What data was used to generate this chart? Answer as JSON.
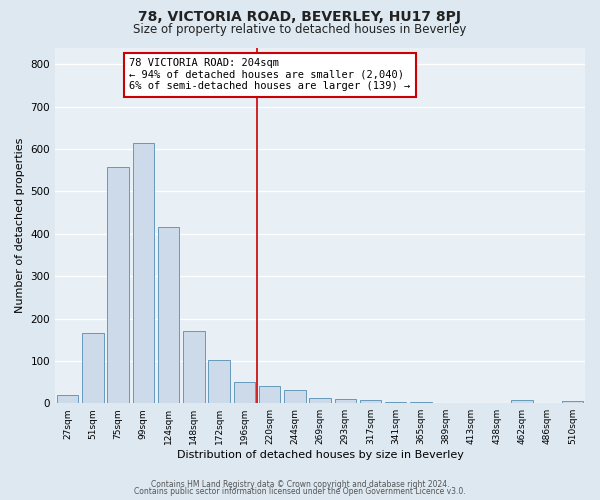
{
  "title": "78, VICTORIA ROAD, BEVERLEY, HU17 8PJ",
  "subtitle": "Size of property relative to detached houses in Beverley",
  "xlabel": "Distribution of detached houses by size in Beverley",
  "ylabel": "Number of detached properties",
  "bar_labels": [
    "27sqm",
    "51sqm",
    "75sqm",
    "99sqm",
    "124sqm",
    "148sqm",
    "172sqm",
    "196sqm",
    "220sqm",
    "244sqm",
    "269sqm",
    "293sqm",
    "317sqm",
    "341sqm",
    "365sqm",
    "389sqm",
    "413sqm",
    "438sqm",
    "462sqm",
    "486sqm",
    "510sqm"
  ],
  "bar_heights": [
    20,
    165,
    558,
    615,
    415,
    170,
    103,
    50,
    40,
    32,
    12,
    10,
    8,
    3,
    2,
    1,
    0,
    0,
    8,
    0,
    5
  ],
  "bar_color": "#ccdaea",
  "bar_edge_color": "#6699bb",
  "property_line_label": "78 VICTORIA ROAD: 204sqm",
  "annotation_line1": "← 94% of detached houses are smaller (2,040)",
  "annotation_line2": "6% of semi-detached houses are larger (139) →",
  "annotation_box_color": "#ffffff",
  "annotation_box_edge_color": "#cc0000",
  "vline_color": "#cc0000",
  "vline_xindex": 7.5,
  "ylim": [
    0,
    840
  ],
  "yticks": [
    0,
    100,
    200,
    300,
    400,
    500,
    600,
    700,
    800
  ],
  "footer1": "Contains HM Land Registry data © Crown copyright and database right 2024.",
  "footer2": "Contains public sector information licensed under the Open Government Licence v3.0.",
  "bg_color": "#dde8f0",
  "plot_bg_color": "#e8f0f6"
}
